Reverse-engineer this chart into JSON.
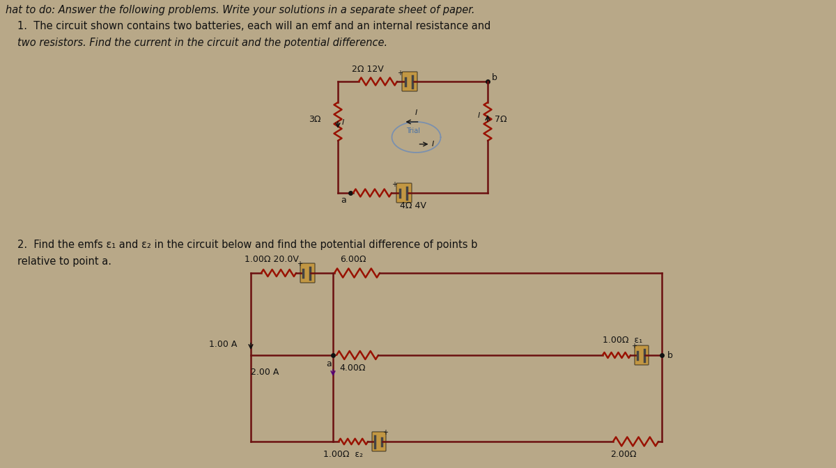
{
  "bg_color": "#b8a888",
  "text_color": "#111111",
  "resistor_color": "#991100",
  "wire_color": "#6B1010",
  "battery_color": "#444444",
  "highlight_color": "#cc8800",
  "header": "hat to do: Answer the following problems. Write your solutions in a separate sheet of paper.",
  "p1_l1": "1.  The circuit shown contains two batteries, each will an emf and an internal resistance and",
  "p1_l2": "two resistors. Find the current in the circuit and the potential difference.",
  "p2_l1": "2.  Find the emfs ε₁ and ε₂ in the circuit below and find the potential difference of points b",
  "p2_l2": "relative to point a.",
  "c1_top_label": "2Ω 12V",
  "c1_left_label": "3Ω",
  "c1_right_label": "7Ω",
  "c1_bot_label": "4Ω 4V",
  "c1_pa": "a",
  "c1_pb": "b",
  "c2_top_label": "1.00Ω 20.0V",
  "c2_topright_label": "6.00Ω",
  "c2_mid_label": "4.00Ω",
  "c2_right_label": "1.00Ω  ε₁",
  "c2_botleft_label": "1.00Ω  ε₂",
  "c2_botright_label": "2.00Ω",
  "c2_cur1": "1.00 A",
  "c2_cur2": "2.00 A",
  "c2_pa": "a",
  "c2_pb": "b"
}
